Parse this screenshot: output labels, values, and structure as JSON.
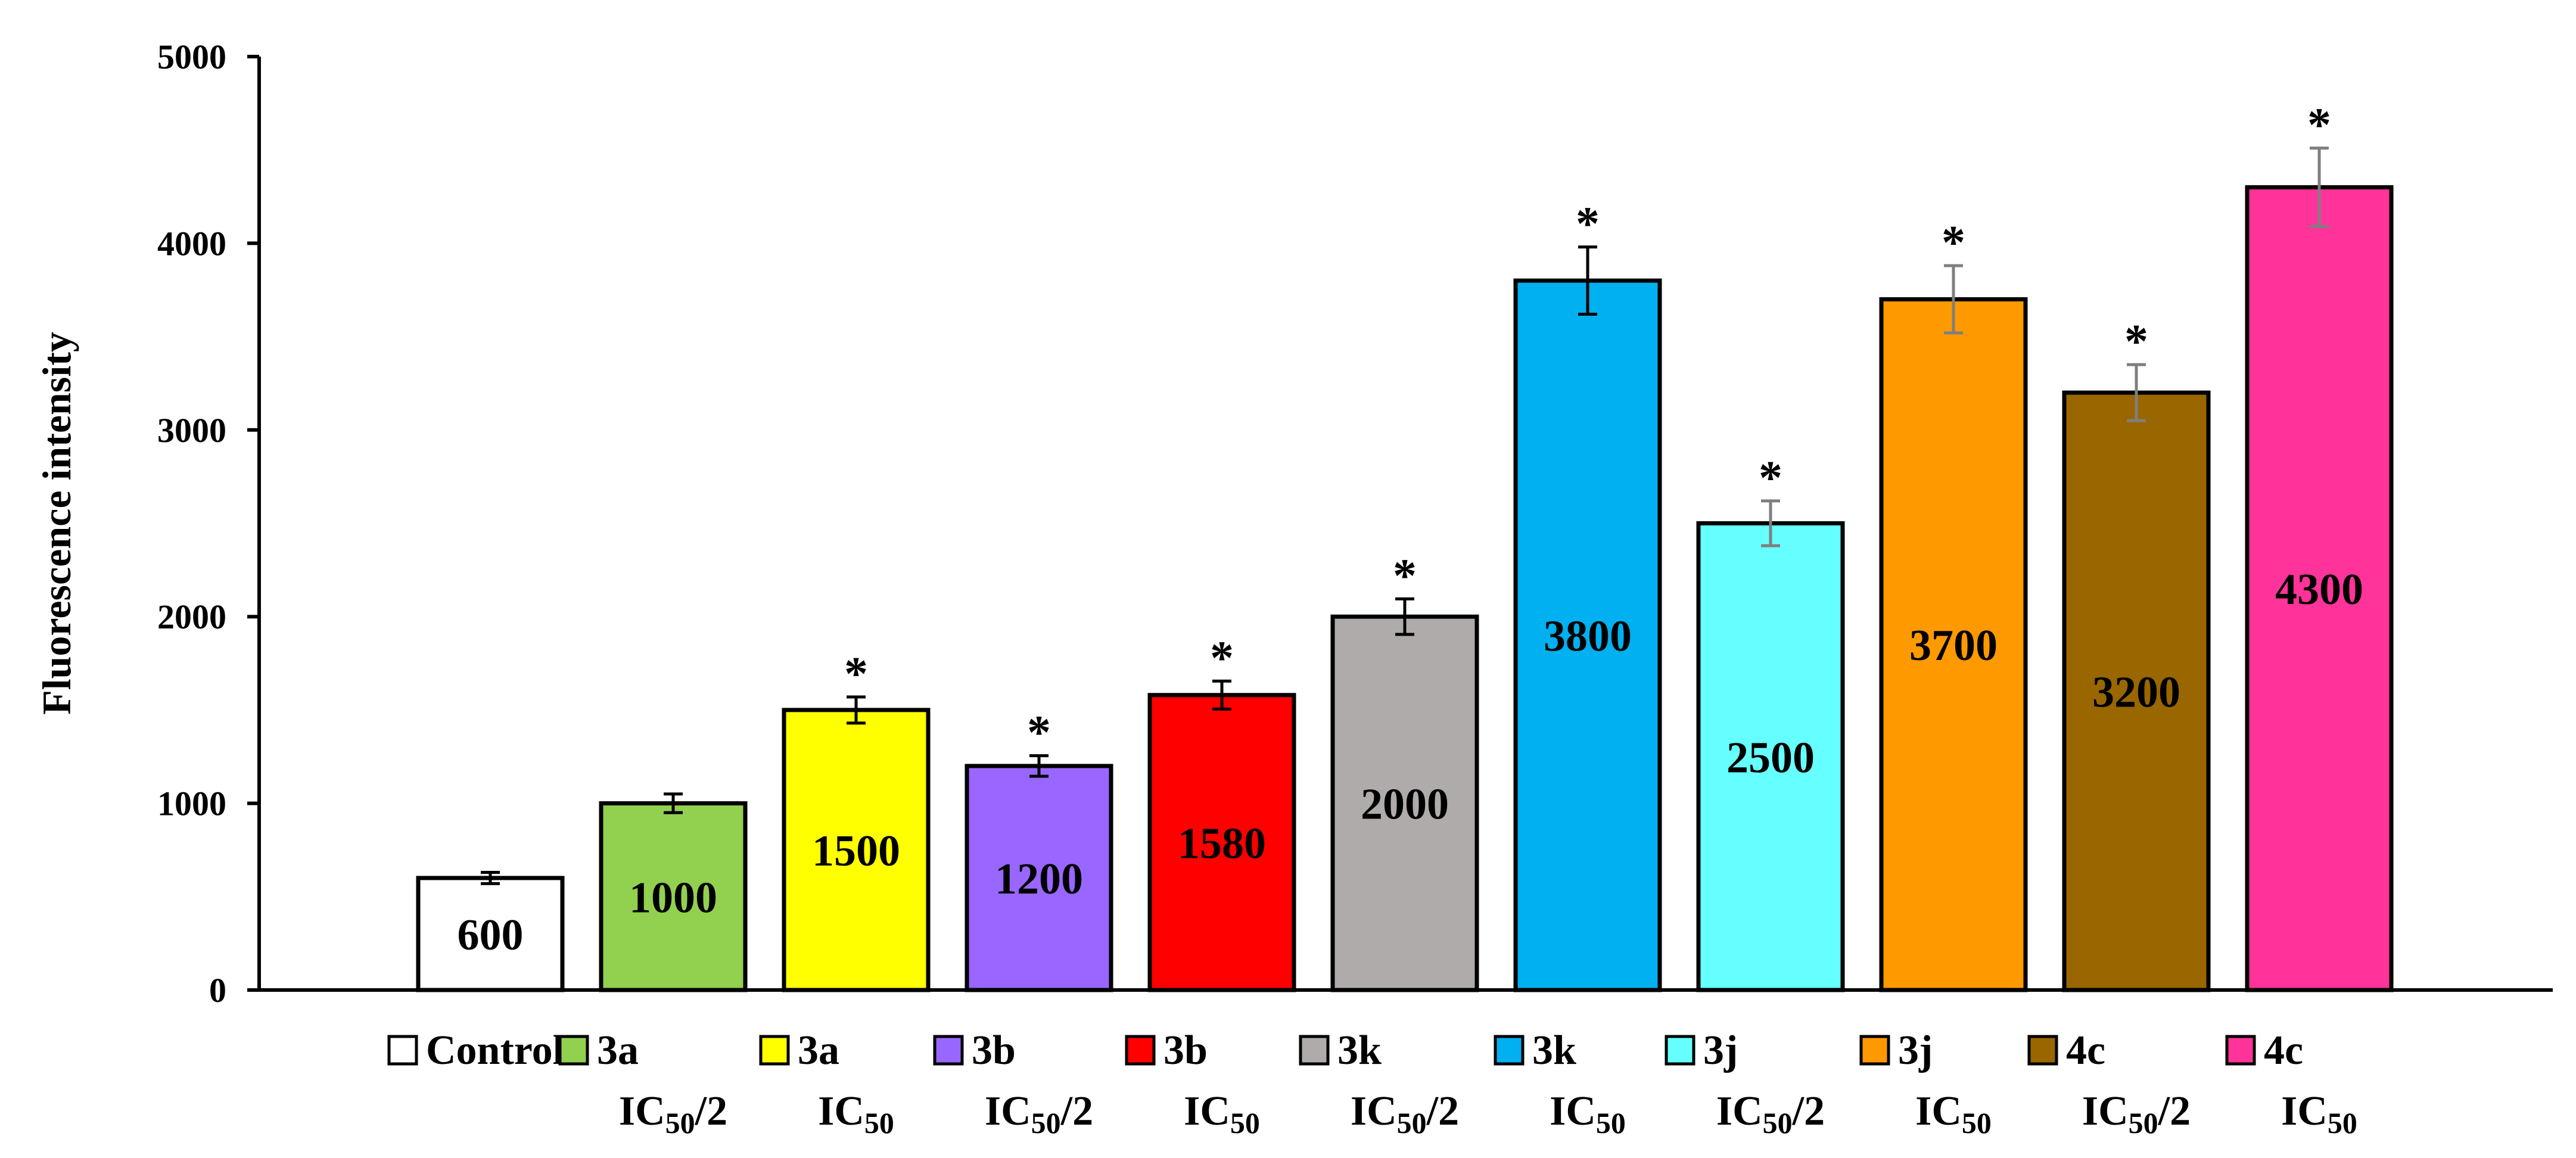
{
  "chart_data": {
    "type": "bar",
    "title": "",
    "xlabel": "",
    "ylabel": "Fluorescence intensity",
    "ylim": [
      0,
      5000
    ],
    "yticks": [
      0,
      1000,
      2000,
      3000,
      4000,
      5000
    ],
    "grid": false,
    "legend_position": "bottom",
    "categories": [
      {
        "name": "Control",
        "line2": "",
        "value": 600,
        "error": 30,
        "significant": false,
        "color": "#FFFFFF",
        "label": "600",
        "error_color": "#000000"
      },
      {
        "name": "3a",
        "line2": "IC50/2",
        "value": 1000,
        "error": 50,
        "significant": false,
        "color": "#92D050",
        "label": "1000",
        "error_color": "#000000"
      },
      {
        "name": "3a",
        "line2": "IC50",
        "value": 1500,
        "error": 70,
        "significant": true,
        "color": "#FFFF00",
        "label": "1500",
        "error_color": "#000000"
      },
      {
        "name": "3b",
        "line2": "IC50/2",
        "value": 1200,
        "error": 55,
        "significant": true,
        "color": "#9966FF",
        "label": "1200",
        "error_color": "#000000"
      },
      {
        "name": "3b",
        "line2": "IC50",
        "value": 1580,
        "error": 75,
        "significant": true,
        "color": "#FF0000",
        "label": "1580",
        "error_color": "#000000"
      },
      {
        "name": "3k",
        "line2": "IC50/2",
        "value": 2000,
        "error": 95,
        "significant": true,
        "color": "#AFABAB",
        "label": "2000",
        "error_color": "#000000"
      },
      {
        "name": "3k",
        "line2": "IC50",
        "value": 3800,
        "error": 180,
        "significant": true,
        "color": "#00B0F0",
        "label": "3800",
        "error_color": "#000000"
      },
      {
        "name": "3j",
        "line2": "IC50/2",
        "value": 2500,
        "error": 120,
        "significant": true,
        "color": "#66FFFF",
        "label": "2500",
        "error_color": "#7F7F7F"
      },
      {
        "name": "3j",
        "line2": "IC50",
        "value": 3700,
        "error": 180,
        "significant": true,
        "color": "#FF9900",
        "label": "3700",
        "error_color": "#7F7F7F"
      },
      {
        "name": "4c",
        "line2": "IC50/2",
        "value": 3200,
        "error": 150,
        "significant": true,
        "color": "#996600",
        "label": "3200",
        "error_color": "#7F7F7F"
      },
      {
        "name": "4c",
        "line2": "IC50",
        "value": 4300,
        "error": 210,
        "significant": true,
        "color": "#FF3399",
        "label": "4300",
        "error_color": "#7F7F7F"
      }
    ],
    "significance_marker": "*"
  }
}
